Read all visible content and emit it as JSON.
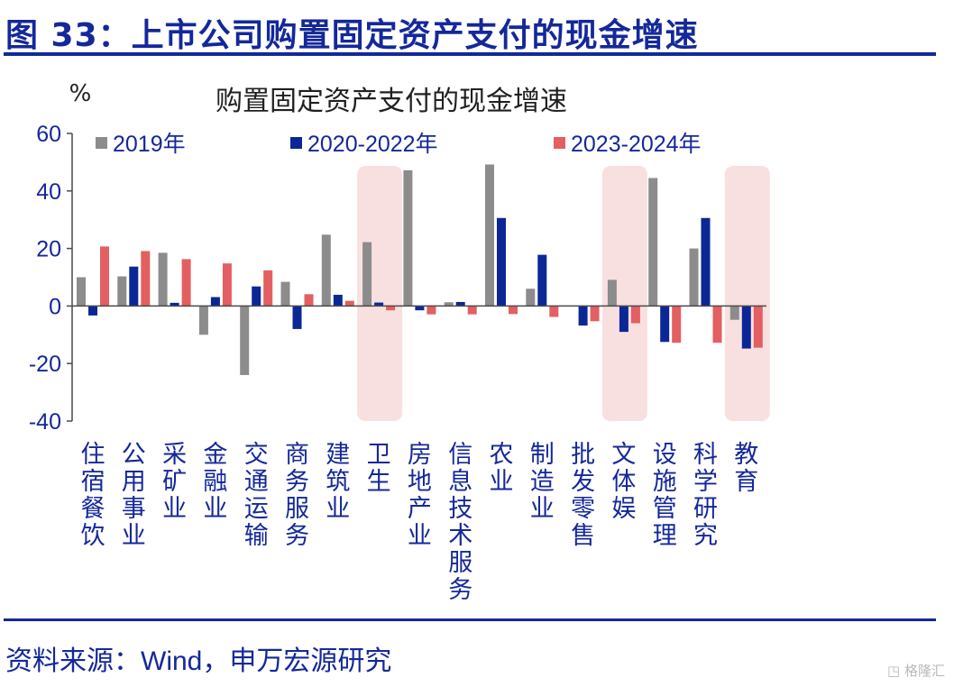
{
  "figure": {
    "title": "图 33：上市公司购置固定资产支付的现金增速",
    "source": "资料来源：Wind，申万宏源研究",
    "watermark": "格隆汇"
  },
  "colors": {
    "brand": "#14289a",
    "series_2019": "#8c8c8c",
    "series_2020_2022": "#0b2796",
    "series_2023_2024": "#e35f61",
    "highlight": "#f9e0e0"
  },
  "chart_data": {
    "type": "bar",
    "title": "购置固定资产支付的现金增速",
    "unit_label": "%",
    "xlabel": "",
    "ylabel": "",
    "ylim": [
      -40,
      60
    ],
    "yticks": [
      60,
      40,
      20,
      0,
      -20,
      -40
    ],
    "grid": false,
    "legend_position": "top",
    "categories": [
      "住宿餐饮",
      "公用事业",
      "采矿业",
      "金融业",
      "交通运输",
      "商务服务",
      "建筑业",
      "卫生",
      "房地产业",
      "信息技术服务",
      "农业",
      "制造业",
      "批发零售",
      "文体娱",
      "设施管理",
      "科学研究",
      "教育"
    ],
    "highlighted_categories": [
      "卫生",
      "文体娱",
      "教育"
    ],
    "series": [
      {
        "name": "2019年",
        "color": "#8c8c8c",
        "values": [
          10,
          10.3,
          18.5,
          -10,
          -24,
          8.4,
          24.8,
          22.2,
          47.2,
          1.3,
          49.2,
          6,
          0,
          9.1,
          44.5,
          20,
          -4.8
        ]
      },
      {
        "name": "2020-2022年",
        "color": "#0b2796",
        "values": [
          -3.3,
          13.7,
          1.1,
          3.1,
          6.8,
          -8,
          3.9,
          1.2,
          -1.5,
          1.4,
          30.6,
          17.8,
          -6.8,
          -9,
          -12.5,
          30.6,
          -14.8
        ]
      },
      {
        "name": "2023-2024年",
        "color": "#e35f61",
        "values": [
          20.7,
          19.1,
          16.3,
          14.8,
          12.4,
          4.1,
          1.8,
          -1.5,
          -2.9,
          -2.9,
          -2.8,
          -3.8,
          -5.3,
          -6,
          -12.8,
          -12.8,
          -14.5
        ]
      }
    ]
  }
}
